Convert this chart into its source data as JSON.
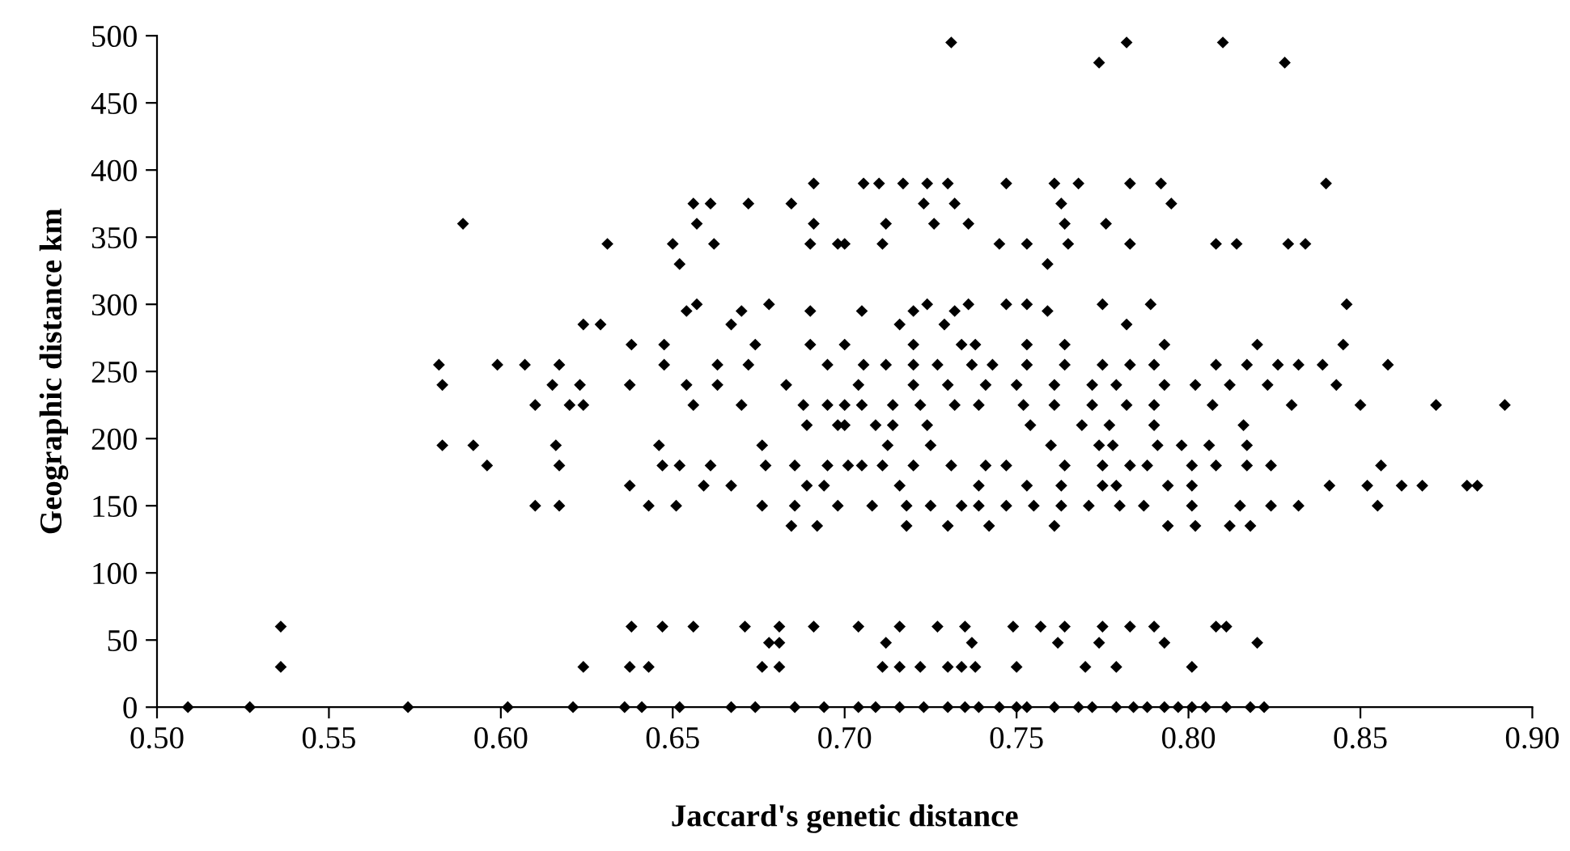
{
  "chart_data": {
    "type": "scatter",
    "xlabel": "Jaccard's genetic distance",
    "ylabel": "Geographic distance km",
    "xlim": [
      0.5,
      0.9
    ],
    "ylim": [
      0,
      500
    ],
    "xticks": [
      {
        "value": 0.5,
        "label": "0.50"
      },
      {
        "value": 0.55,
        "label": "0.55"
      },
      {
        "value": 0.6,
        "label": "0.60"
      },
      {
        "value": 0.65,
        "label": "0.65"
      },
      {
        "value": 0.7,
        "label": "0.70"
      },
      {
        "value": 0.75,
        "label": "0.75"
      },
      {
        "value": 0.8,
        "label": "0.80"
      },
      {
        "value": 0.85,
        "label": "0.85"
      },
      {
        "value": 0.9,
        "label": "0.90"
      }
    ],
    "yticks": [
      0,
      50,
      100,
      150,
      200,
      250,
      300,
      350,
      400,
      450,
      500
    ],
    "marker": "diamond",
    "series": [
      {
        "color": "#000000",
        "x": [
          0.509,
          0.527,
          0.536,
          0.536,
          0.573,
          0.602,
          0.621,
          0.589,
          0.582,
          0.583,
          0.583,
          0.592,
          0.596,
          0.599,
          0.607,
          0.61,
          0.61,
          0.617,
          0.615,
          0.616,
          0.617,
          0.617,
          0.62,
          0.624,
          0.623,
          0.624,
          0.629,
          0.631,
          0.624,
          0.6375,
          0.638,
          0.6375,
          0.643,
          0.638,
          0.6375,
          0.643,
          0.636,
          0.641,
          0.6475,
          0.6475,
          0.646,
          0.647,
          0.651,
          0.647,
          0.65,
          0.652,
          0.656,
          0.661,
          0.657,
          0.662,
          0.657,
          0.654,
          0.654,
          0.656,
          0.652,
          0.659,
          0.656,
          0.652,
          0.663,
          0.663,
          0.661,
          0.667,
          0.667,
          0.672,
          0.67,
          0.674,
          0.672,
          0.67,
          0.676,
          0.676,
          0.677,
          0.678,
          0.671,
          0.678,
          0.676,
          0.667,
          0.674,
          0.6845,
          0.691,
          0.691,
          0.69,
          0.69,
          0.69,
          0.683,
          0.688,
          0.689,
          0.6845,
          0.692,
          0.6855,
          0.6855,
          0.681,
          0.681,
          0.681,
          0.6855,
          0.694,
          0.689,
          0.694,
          0.698,
          0.695,
          0.698,
          0.7,
          0.695,
          0.698,
          0.7,
          0.691,
          0.731,
          0.782,
          0.81,
          0.774,
          0.828,
          0.7055,
          0.71,
          0.717,
          0.724,
          0.73,
          0.747,
          0.761,
          0.768,
          0.783,
          0.792,
          0.84,
          0.723,
          0.732,
          0.763,
          0.795,
          0.712,
          0.726,
          0.736,
          0.764,
          0.776,
          0.7,
          0.711,
          0.745,
          0.753,
          0.765,
          0.783,
          0.808,
          0.814,
          0.829,
          0.834,
          0.759,
          0.705,
          0.716,
          0.72,
          0.724,
          0.729,
          0.732,
          0.736,
          0.747,
          0.753,
          0.759,
          0.775,
          0.782,
          0.789,
          0.846,
          0.72,
          0.734,
          0.738,
          0.753,
          0.764,
          0.793,
          0.82,
          0.845,
          0.7055,
          0.712,
          0.72,
          0.727,
          0.737,
          0.743,
          0.753,
          0.764,
          0.775,
          0.783,
          0.79,
          0.808,
          0.817,
          0.826,
          0.832,
          0.839,
          0.858,
          0.704,
          0.72,
          0.73,
          0.741,
          0.75,
          0.761,
          0.772,
          0.779,
          0.793,
          0.802,
          0.812,
          0.823,
          0.843,
          0.695,
          0.705,
          0.714,
          0.722,
          0.732,
          0.739,
          0.752,
          0.761,
          0.772,
          0.782,
          0.79,
          0.807,
          0.83,
          0.85,
          0.872,
          0.892,
          0.7,
          0.709,
          0.714,
          0.724,
          0.754,
          0.769,
          0.777,
          0.79,
          0.816,
          0.7125,
          0.725,
          0.76,
          0.774,
          0.778,
          0.791,
          0.798,
          0.806,
          0.817,
          0.701,
          0.705,
          0.711,
          0.72,
          0.731,
          0.741,
          0.747,
          0.764,
          0.775,
          0.783,
          0.788,
          0.801,
          0.808,
          0.817,
          0.824,
          0.856,
          0.716,
          0.739,
          0.753,
          0.763,
          0.775,
          0.779,
          0.794,
          0.801,
          0.841,
          0.852,
          0.862,
          0.868,
          0.881,
          0.884,
          0.708,
          0.718,
          0.725,
          0.734,
          0.739,
          0.747,
          0.755,
          0.763,
          0.771,
          0.78,
          0.787,
          0.801,
          0.815,
          0.824,
          0.832,
          0.855,
          0.718,
          0.73,
          0.742,
          0.761,
          0.794,
          0.802,
          0.812,
          0.818,
          0.704,
          0.716,
          0.727,
          0.735,
          0.749,
          0.757,
          0.764,
          0.775,
          0.783,
          0.79,
          0.808,
          0.811,
          0.712,
          0.737,
          0.762,
          0.774,
          0.793,
          0.82,
          0.711,
          0.716,
          0.722,
          0.73,
          0.734,
          0.738,
          0.75,
          0.77,
          0.779,
          0.801,
          0.704,
          0.709,
          0.716,
          0.723,
          0.73,
          0.735,
          0.739,
          0.745,
          0.75,
          0.753,
          0.761,
          0.768,
          0.772,
          0.779,
          0.784,
          0.788,
          0.793,
          0.797,
          0.801,
          0.805,
          0.811,
          0.818,
          0.822
        ],
        "values": [
          0,
          0,
          30,
          60,
          0,
          0,
          0,
          360,
          255,
          240,
          195,
          195,
          180,
          255,
          255,
          225,
          150,
          255,
          240,
          195,
          180,
          150,
          225,
          225,
          240,
          285,
          285,
          345,
          30,
          240,
          270,
          165,
          150,
          60,
          30,
          30,
          0,
          0,
          270,
          255,
          195,
          180,
          150,
          60,
          345,
          330,
          375,
          375,
          360,
          345,
          300,
          295,
          240,
          225,
          180,
          165,
          60,
          0,
          255,
          240,
          180,
          285,
          165,
          375,
          295,
          270,
          255,
          225,
          195,
          150,
          180,
          300,
          60,
          48,
          30,
          0,
          0,
          375,
          390,
          360,
          345,
          295,
          270,
          240,
          225,
          210,
          135,
          135,
          180,
          150,
          60,
          48,
          30,
          0,
          0,
          165,
          165,
          150,
          180,
          345,
          270,
          255,
          210,
          225,
          60,
          495,
          495,
          495,
          480,
          480,
          390,
          390,
          390,
          390,
          390,
          390,
          390,
          390,
          390,
          390,
          390,
          375,
          375,
          375,
          375,
          360,
          360,
          360,
          360,
          360,
          345,
          345,
          345,
          345,
          345,
          345,
          345,
          345,
          345,
          345,
          330,
          295,
          285,
          295,
          300,
          285,
          295,
          300,
          300,
          300,
          295,
          300,
          285,
          300,
          300,
          270,
          270,
          270,
          270,
          270,
          270,
          270,
          270,
          255,
          255,
          255,
          255,
          255,
          255,
          255,
          255,
          255,
          255,
          255,
          255,
          255,
          255,
          255,
          255,
          255,
          240,
          240,
          240,
          240,
          240,
          240,
          240,
          240,
          240,
          240,
          240,
          240,
          240,
          225,
          225,
          225,
          225,
          225,
          225,
          225,
          225,
          225,
          225,
          225,
          225,
          225,
          225,
          225,
          225,
          210,
          210,
          210,
          210,
          210,
          210,
          210,
          210,
          210,
          195,
          195,
          195,
          195,
          195,
          195,
          195,
          195,
          195,
          180,
          180,
          180,
          180,
          180,
          180,
          180,
          180,
          180,
          180,
          180,
          180,
          180,
          180,
          180,
          180,
          165,
          165,
          165,
          165,
          165,
          165,
          165,
          165,
          165,
          165,
          165,
          165,
          165,
          165,
          150,
          150,
          150,
          150,
          150,
          150,
          150,
          150,
          150,
          150,
          150,
          150,
          150,
          150,
          150,
          150,
          135,
          135,
          135,
          135,
          135,
          135,
          135,
          135,
          60,
          60,
          60,
          60,
          60,
          60,
          60,
          60,
          60,
          60,
          60,
          60,
          48,
          48,
          48,
          48,
          48,
          48,
          30,
          30,
          30,
          30,
          30,
          30,
          30,
          30,
          30,
          30,
          0,
          0,
          0,
          0,
          0,
          0,
          0,
          0,
          0,
          0,
          0,
          0,
          0,
          0,
          0,
          0,
          0,
          0,
          0,
          0,
          0,
          0,
          0
        ]
      }
    ]
  }
}
